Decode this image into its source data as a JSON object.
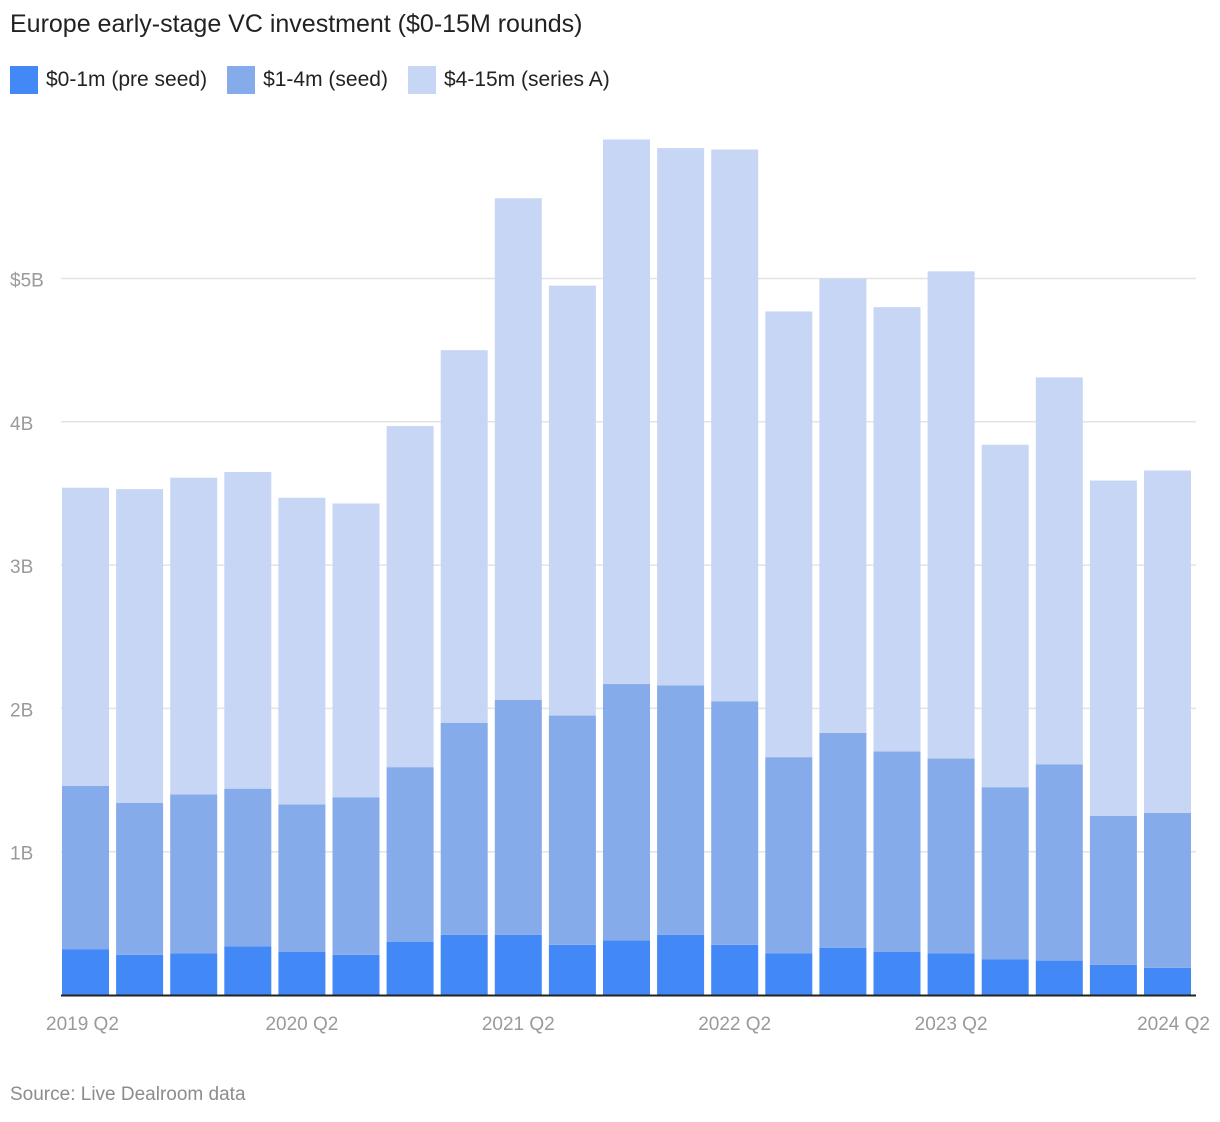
{
  "chart_data": {
    "type": "bar",
    "stacked": true,
    "title": "Europe early-stage VC investment ($0-15M rounds)",
    "source": "Source: Live Dealroom data",
    "x": [
      "2019 Q2",
      "2019 Q3",
      "2019 Q4",
      "2020 Q1",
      "2020 Q2",
      "2020 Q3",
      "2020 Q4",
      "2021 Q1",
      "2021 Q2",
      "2021 Q3",
      "2021 Q4",
      "2022 Q1",
      "2022 Q2",
      "2022 Q3",
      "2022 Q4",
      "2023 Q1",
      "2023 Q2",
      "2023 Q3",
      "2023 Q4",
      "2024 Q1",
      "2024 Q2"
    ],
    "x_tick_labels": [
      "2019 Q2",
      "2020 Q2",
      "2021 Q2",
      "2022 Q2",
      "2023 Q2",
      "2024 Q2"
    ],
    "y_ticks": [
      {
        "value": 1,
        "label": "1B"
      },
      {
        "value": 2,
        "label": "2B"
      },
      {
        "value": 3,
        "label": "3B"
      },
      {
        "value": 4,
        "label": "4B"
      },
      {
        "value": 5,
        "label": "$5B"
      }
    ],
    "ylim": [
      0,
      6.2
    ],
    "y_unit": "billions USD",
    "grid": true,
    "legend_position": "top-left",
    "series": [
      {
        "name": "$0-1m (pre seed)",
        "color": "#4288f7",
        "values": [
          0.32,
          0.28,
          0.29,
          0.34,
          0.3,
          0.28,
          0.37,
          0.42,
          0.42,
          0.35,
          0.38,
          0.42,
          0.35,
          0.29,
          0.33,
          0.3,
          0.29,
          0.25,
          0.24,
          0.21,
          0.19
        ]
      },
      {
        "name": "$1-4m (seed)",
        "color": "#86abea",
        "values": [
          1.14,
          1.06,
          1.11,
          1.1,
          1.03,
          1.1,
          1.22,
          1.48,
          1.64,
          1.6,
          1.79,
          1.74,
          1.7,
          1.37,
          1.5,
          1.4,
          1.36,
          1.2,
          1.37,
          1.04,
          1.08
        ]
      },
      {
        "name": "$4-15m (series A)",
        "color": "#c7d6f4",
        "values": [
          2.08,
          2.19,
          2.21,
          2.21,
          2.14,
          2.05,
          2.38,
          2.6,
          3.5,
          3.0,
          3.8,
          3.75,
          3.85,
          3.11,
          3.17,
          3.1,
          3.4,
          2.39,
          2.7,
          2.34,
          2.39
        ]
      }
    ]
  }
}
